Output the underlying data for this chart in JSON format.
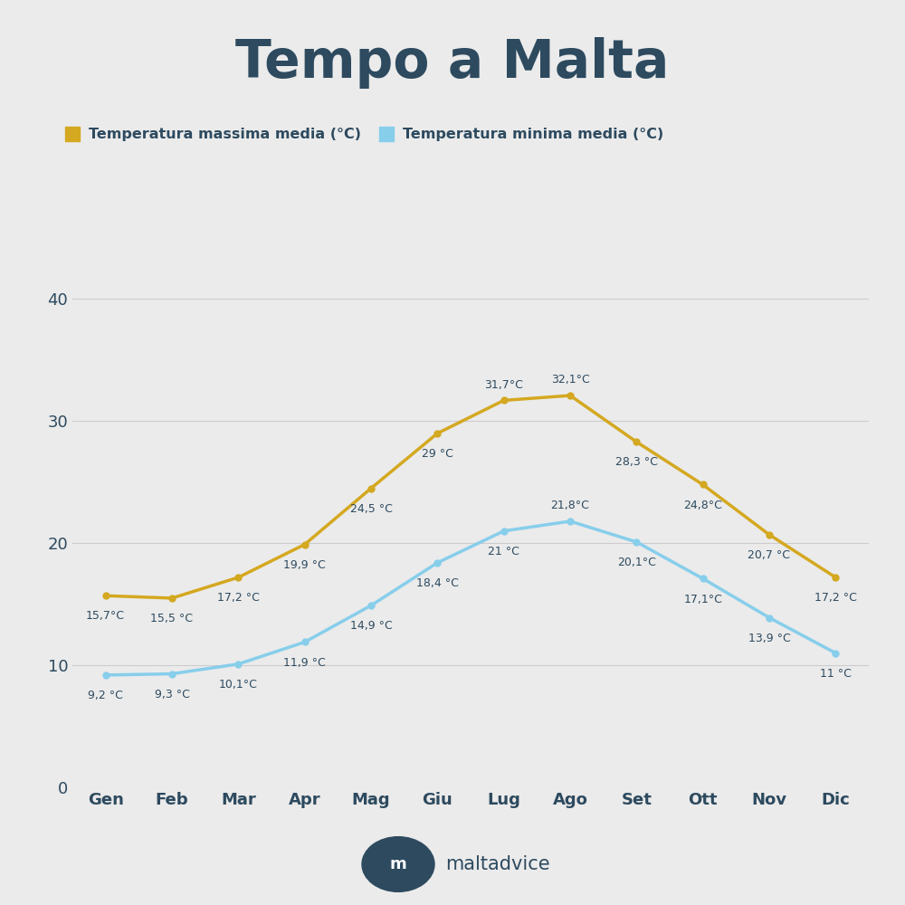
{
  "title": "Tempo a Malta",
  "title_color": "#2d4a5f",
  "background_color": "#ebebeb",
  "months": [
    "Gen",
    "Feb",
    "Mar",
    "Apr",
    "Mag",
    "Giu",
    "Lug",
    "Ago",
    "Set",
    "Ott",
    "Nov",
    "Dic"
  ],
  "max_temps": [
    15.7,
    15.5,
    17.2,
    19.9,
    24.5,
    29.0,
    31.7,
    32.1,
    28.3,
    24.8,
    20.7,
    17.2
  ],
  "min_temps": [
    9.2,
    9.3,
    10.1,
    11.9,
    14.9,
    18.4,
    21.0,
    21.8,
    20.1,
    17.1,
    13.9,
    11.0
  ],
  "max_labels": [
    "15,7°C",
    "15,5 °C",
    "17,2 °C",
    "19,9 °C",
    "24,5 °C",
    "29 °C",
    "31,7°C",
    "32,1°C",
    "28,3 °C",
    "24,8°C",
    "20,7 °C",
    "17,2 °C"
  ],
  "min_labels": [
    "9,2 °C",
    "9,3 °C",
    "10,1°C",
    "11,9 °C",
    "14,9 °C",
    "18,4 °C",
    "21 °C",
    "21,8°C",
    "20,1°C",
    "17,1°C",
    "13,9 °C",
    "11 °C"
  ],
  "max_color": "#d4a820",
  "min_color": "#87ceeb",
  "line_width": 2.5,
  "marker_size": 5,
  "ylim": [
    0,
    43
  ],
  "yticks": [
    0,
    10,
    20,
    30,
    40
  ],
  "legend_max": "Temperatura massima media (°C)",
  "legend_min": "Temperatura minima media (°C)",
  "grid_color": "#cccccc",
  "axis_label_color": "#2d4a5f",
  "data_label_color": "#2d4a5f",
  "watermark_text": "maltadvice",
  "watermark_color": "#2d4a5f"
}
